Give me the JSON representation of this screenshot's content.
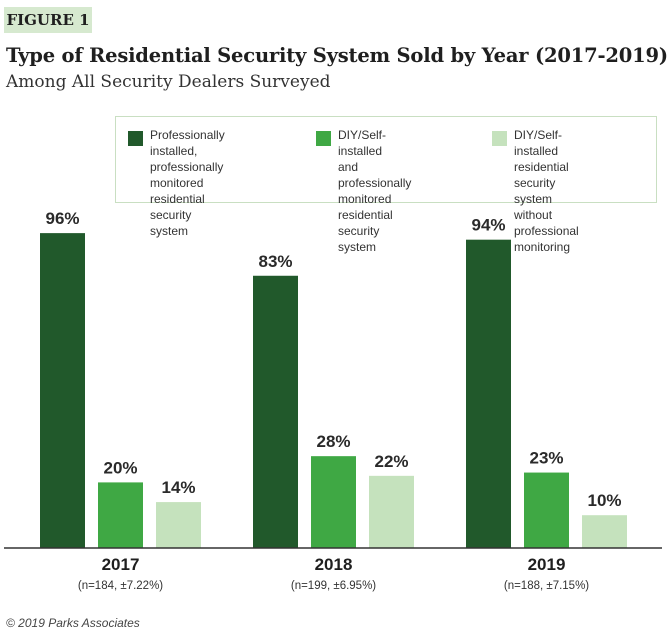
{
  "figure_label": "FIGURE 1",
  "credit": "© 2019 Parks Associates",
  "colors": {
    "dark": "#21592b",
    "medium": "#3fa844",
    "light": "#c5e2bd",
    "axis": "#333333",
    "tag_bg": "#d6e9cf"
  },
  "chart_data": {
    "type": "bar",
    "title": "Type of Residential Security System Sold by Year (2017-2019)",
    "subtitle": "Among All Security Dealers Surveyed",
    "categories": [
      "2017",
      "2018",
      "2019"
    ],
    "category_notes": [
      "(n=184, ±7.22%)",
      "(n=199, ±6.95%)",
      "(n=188, ±7.15%)"
    ],
    "series": [
      {
        "name": "Professionally installed, professionally monitored residential security system",
        "values": [
          96,
          83,
          94
        ],
        "labels": [
          "96%",
          "83%",
          "94%"
        ]
      },
      {
        "name": "DIY/Self-installed and professionally monitored residential security system",
        "values": [
          20,
          28,
          23
        ],
        "labels": [
          "20%",
          "28%",
          "23%"
        ]
      },
      {
        "name": "DIY/Self-installed residential security system without professional monitoring",
        "values": [
          14,
          22,
          10
        ],
        "labels": [
          "14%",
          "22%",
          "10%"
        ]
      }
    ],
    "legend_lines": [
      [
        "Professionally",
        "installed, professionally",
        "monitored residential",
        "security system"
      ],
      [
        "DIY/Self-installed",
        "and professionally",
        "monitored residential",
        "security system"
      ],
      [
        "DIY/Self-installed",
        "residential security",
        "system without",
        "professional monitoring"
      ]
    ],
    "ylim": [
      0,
      100
    ],
    "grid": false,
    "legend_position": "top-right"
  }
}
